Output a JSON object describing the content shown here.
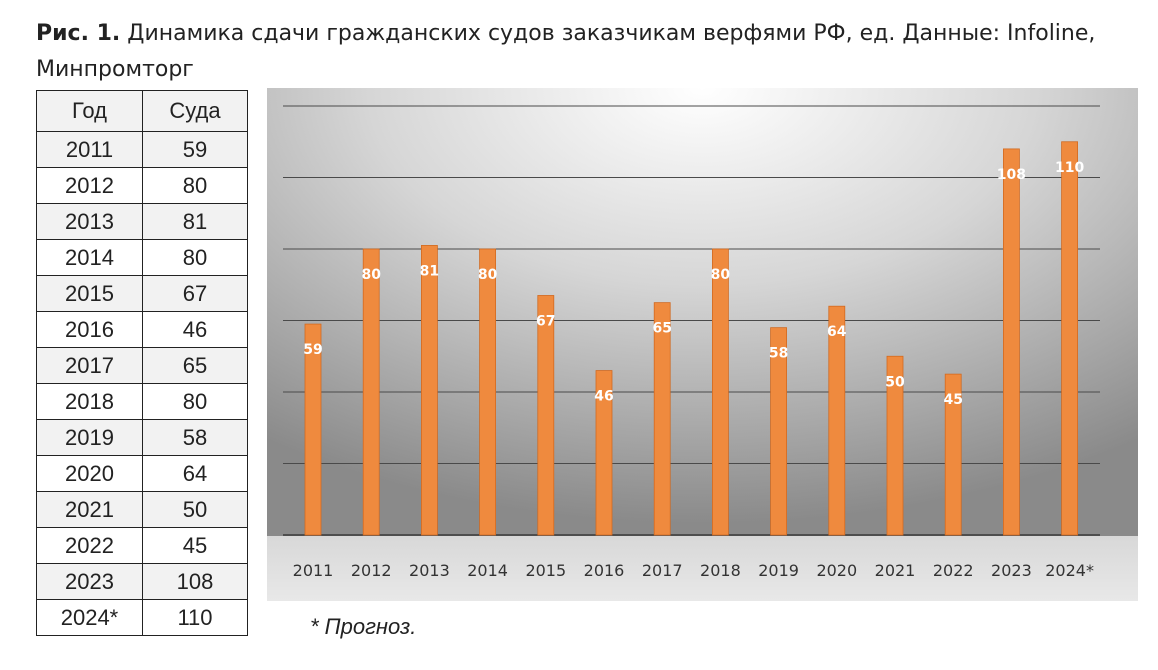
{
  "caption": {
    "bold": "Рис. 1.",
    "text": "Динамика сдачи гражданских судов заказчикам верфями РФ, ед. Данные: Infoline, Минпромторг"
  },
  "table": {
    "headers": [
      "Год",
      "Суда"
    ],
    "rows": [
      [
        "2011",
        "59"
      ],
      [
        "2012",
        "80"
      ],
      [
        "2013",
        "81"
      ],
      [
        "2014",
        "80"
      ],
      [
        "2015",
        "67"
      ],
      [
        "2016",
        "46"
      ],
      [
        "2017",
        "65"
      ],
      [
        "2018",
        "80"
      ],
      [
        "2019",
        "58"
      ],
      [
        "2020",
        "64"
      ],
      [
        "2021",
        "50"
      ],
      [
        "2022",
        "45"
      ],
      [
        "2023",
        "108"
      ],
      [
        "2024*",
        "110"
      ]
    ]
  },
  "note": "* Прогноз.",
  "chart_data": {
    "type": "bar",
    "categories": [
      "2011",
      "2012",
      "2013",
      "2014",
      "2015",
      "2016",
      "2017",
      "2018",
      "2019",
      "2020",
      "2021",
      "2022",
      "2023",
      "2024*"
    ],
    "values": [
      59,
      80,
      81,
      80,
      67,
      46,
      65,
      80,
      58,
      64,
      50,
      45,
      108,
      110
    ],
    "ylim": [
      0,
      120
    ],
    "grid": true,
    "bar_color": "#ef8a3e",
    "label_color": "#ffffff",
    "background": "#8c8c8c"
  }
}
